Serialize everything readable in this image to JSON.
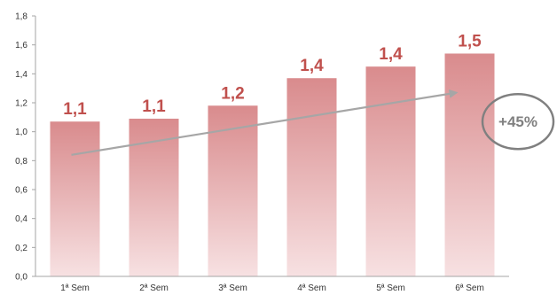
{
  "chart_data": {
    "type": "bar",
    "categories": [
      "1ª Sem",
      "2ª Sem",
      "3ª Sem",
      "4ª Sem",
      "5ª Sem",
      "6ª Sem"
    ],
    "values": [
      1.07,
      1.09,
      1.18,
      1.37,
      1.45,
      1.54
    ],
    "data_labels": [
      "1,1",
      "1,1",
      "1,2",
      "1,4",
      "1,4",
      "1,5"
    ],
    "ylim": [
      0,
      1.8
    ],
    "yticks": [
      0,
      0.2,
      0.4,
      0.6,
      0.8,
      1.0,
      1.2,
      1.4,
      1.6,
      1.8
    ],
    "ytick_labels": [
      "0,0",
      "0,2",
      "0,4",
      "0,6",
      "0,8",
      "1,0",
      "1,2",
      "1,4",
      "1,6",
      "1,8"
    ],
    "grid": false,
    "legend": "none",
    "bar_color_top": "#d98b8d",
    "bar_color_bottom": "#f7e1e2",
    "label_color": "#c0504d",
    "trend_arrow": {
      "from_value": 0.84,
      "to_value": 1.27,
      "color": "#a6a6a6"
    },
    "callout": {
      "text": "+45%",
      "color": "#808080"
    }
  }
}
